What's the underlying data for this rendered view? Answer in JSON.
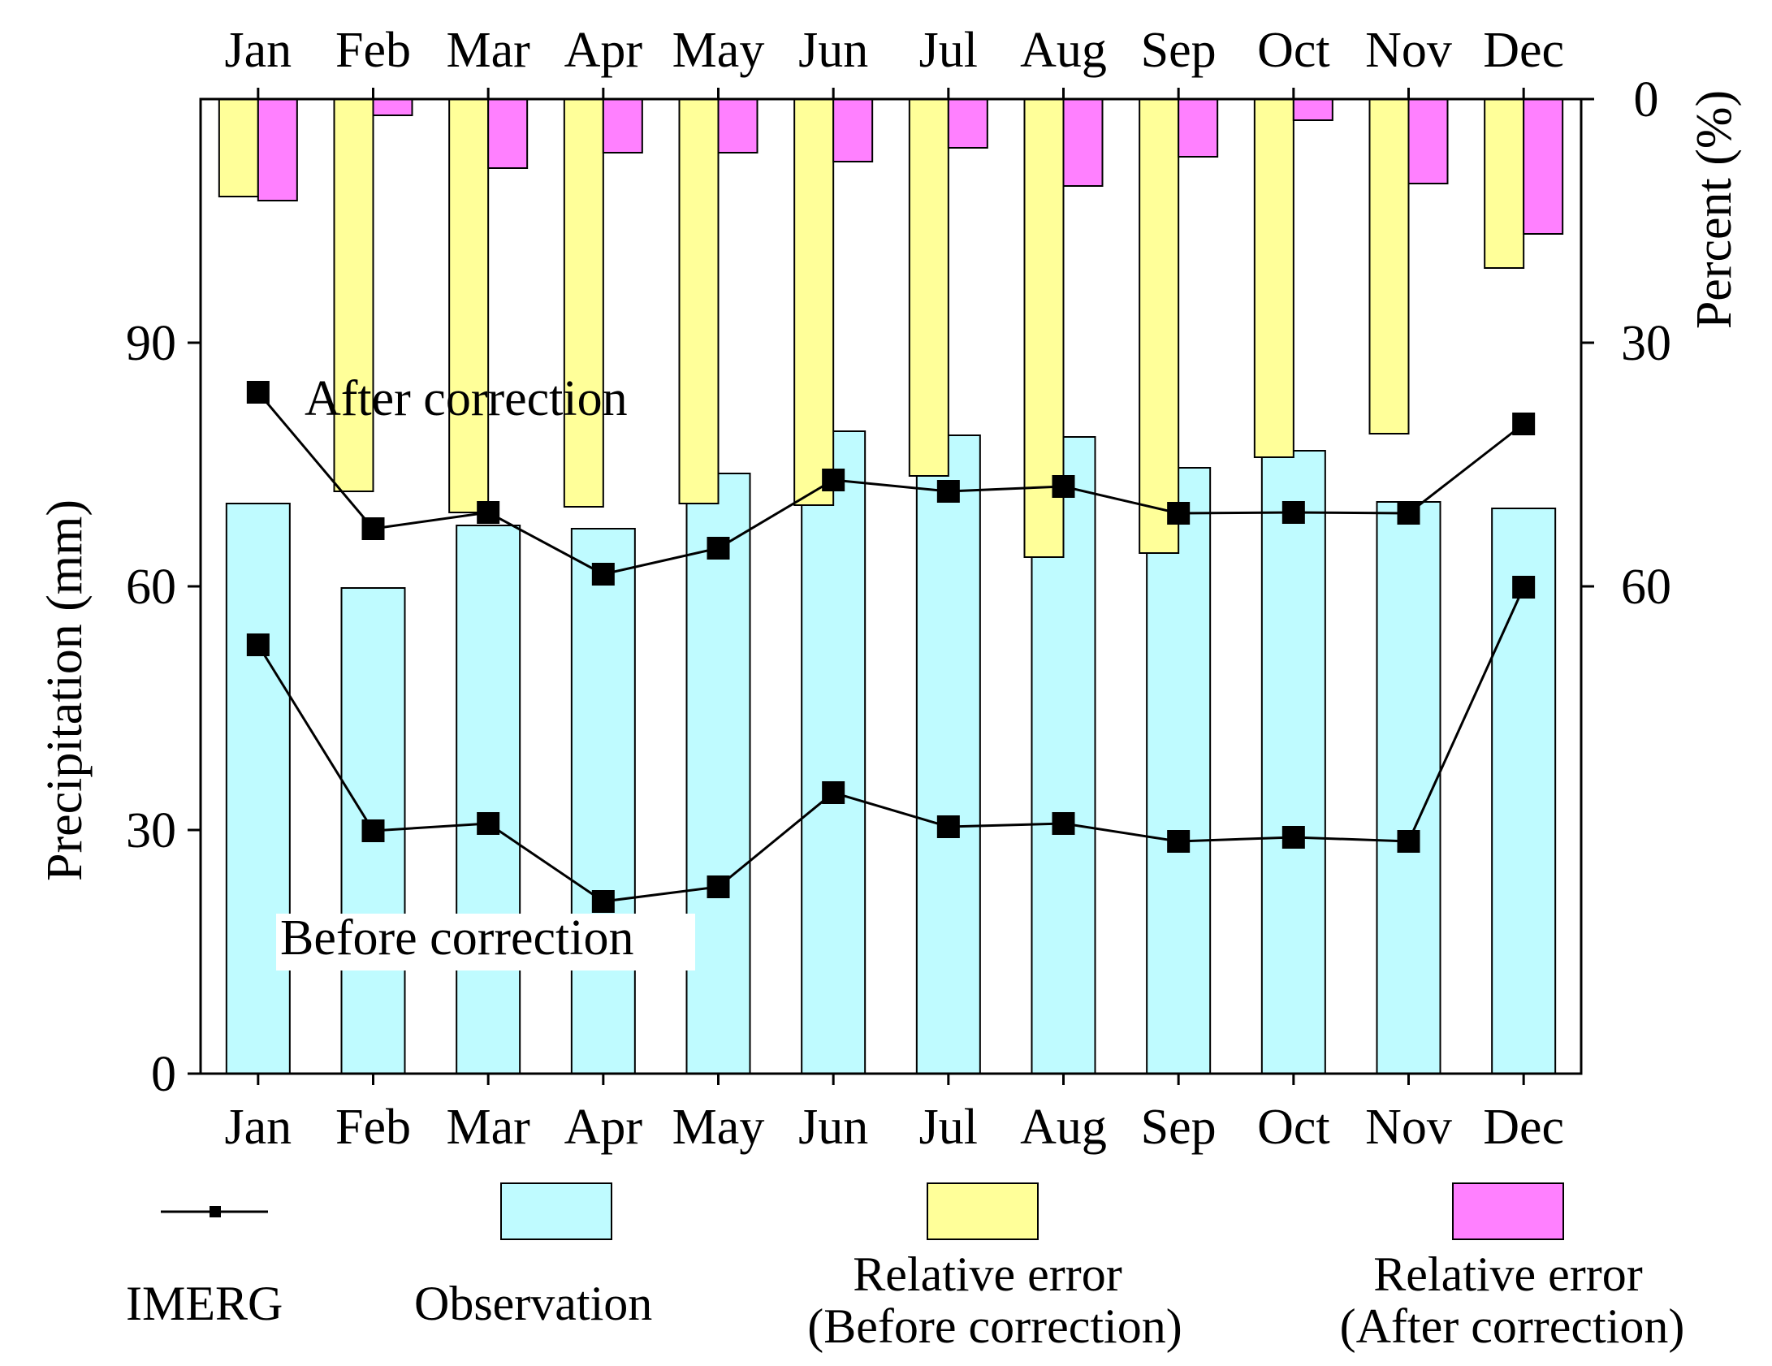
{
  "chart_data": {
    "type": "bar",
    "categories": [
      "Jan",
      "Feb",
      "Mar",
      "Apr",
      "May",
      "Jun",
      "Jul",
      "Aug",
      "Sep",
      "Oct",
      "Nov",
      "Dec"
    ],
    "left_axis": {
      "label": "Precipitation (mm)",
      "range": [
        0,
        120
      ],
      "ticks": [
        "0",
        "30",
        "60",
        "90"
      ]
    },
    "right_axis": {
      "label": "Percent (%)",
      "range": [
        0,
        120
      ],
      "ticks": [
        "0",
        "30",
        "60"
      ],
      "inverted": true
    },
    "series": [
      {
        "name": "Observation",
        "type": "bar",
        "axis": "left",
        "values": [
          70.2,
          59.8,
          67.5,
          67.1,
          73.9,
          79.1,
          78.6,
          78.4,
          74.6,
          76.7,
          70.4,
          69.6
        ]
      },
      {
        "name": "IMERG",
        "type": "line",
        "axis": "left",
        "annotation": "After correction",
        "values": [
          83.9,
          67.1,
          69.1,
          61.5,
          64.7,
          73.1,
          71.7,
          72.3,
          69.0,
          69.1,
          69.0,
          80.0
        ]
      },
      {
        "name": "IMERG",
        "type": "line",
        "axis": "left",
        "annotation": "Before correction",
        "values": [
          52.8,
          29.9,
          30.8,
          21.2,
          23.0,
          34.6,
          30.4,
          30.8,
          28.6,
          29.1,
          28.6,
          59.9
        ]
      },
      {
        "name": "Relative error (Before correction)",
        "type": "bar",
        "axis": "right",
        "values": [
          12.0,
          48.3,
          50.9,
          50.2,
          49.8,
          50.0,
          46.4,
          56.4,
          55.9,
          44.1,
          41.2,
          20.8
        ]
      },
      {
        "name": "Relative error (After correction)",
        "type": "bar",
        "axis": "right",
        "values": [
          12.5,
          2.0,
          8.5,
          6.6,
          6.6,
          7.7,
          6.0,
          10.7,
          7.1,
          2.6,
          10.4,
          16.6
        ]
      }
    ],
    "annotations": [
      "After correction",
      "Before correction"
    ],
    "legend": {
      "position": "bottom",
      "items": [
        {
          "label": "IMERG",
          "kind": "line-marker"
        },
        {
          "label": "Observation",
          "kind": "bar",
          "color": "#BFFBFF"
        },
        {
          "label_line1": "Relative error",
          "label_line2": "(Before correction)",
          "kind": "bar",
          "color": "#FFFF99"
        },
        {
          "label_line1": "Relative error",
          "label_line2": "(After correction)",
          "kind": "bar",
          "color": "#FF80FF"
        }
      ]
    },
    "colors": {
      "observation": "#BFFBFF",
      "relative_error_before": "#FFFF99",
      "relative_error_after": "#FF80FF",
      "imerg": "#000000"
    },
    "grid": false
  }
}
